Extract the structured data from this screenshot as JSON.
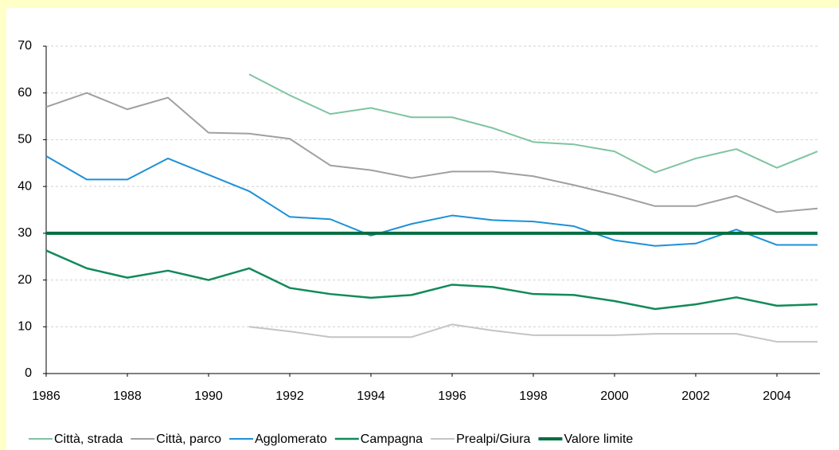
{
  "chart_data": {
    "type": "line",
    "x": [
      1986,
      1987,
      1988,
      1989,
      1990,
      1991,
      1992,
      1993,
      1994,
      1995,
      1996,
      1997,
      1998,
      1999,
      2000,
      2001,
      2002,
      2003,
      2004,
      2005
    ],
    "series": [
      {
        "name": "Città, strada",
        "color": "#7fc4a0",
        "width": 2,
        "values": [
          null,
          null,
          null,
          null,
          null,
          64,
          59.5,
          55.5,
          56.8,
          54.8,
          54.8,
          52.5,
          49.5,
          49,
          47.5,
          43,
          46,
          48,
          44,
          47.5
        ]
      },
      {
        "name": "Città, parco",
        "color": "#a0a0a0",
        "width": 2,
        "values": [
          57,
          60,
          56.5,
          59,
          51.5,
          51.3,
          50.2,
          44.5,
          43.5,
          41.8,
          43.2,
          43.2,
          42.2,
          40.3,
          38.2,
          35.8,
          35.8,
          38,
          34.5,
          35.3
        ]
      },
      {
        "name": "Agglomerato",
        "color": "#1e90d8",
        "width": 2,
        "values": [
          46.5,
          41.5,
          41.5,
          46,
          42.5,
          39,
          33.5,
          33,
          29.5,
          32,
          33.8,
          32.8,
          32.5,
          31.5,
          28.5,
          27.3,
          27.8,
          30.8,
          27.5,
          27.5
        ]
      },
      {
        "name": "Campagna",
        "color": "#128a5a",
        "width": 2.5,
        "values": [
          26.3,
          22.5,
          20.5,
          22,
          20,
          22.5,
          18.3,
          17,
          16.2,
          16.8,
          19,
          18.5,
          17,
          16.8,
          15.5,
          13.8,
          14.8,
          16.3,
          14.5,
          14.8
        ]
      },
      {
        "name": "Prealpi/Giura",
        "color": "#c4c4c4",
        "width": 2,
        "values": [
          null,
          null,
          null,
          null,
          null,
          10,
          9,
          7.8,
          7.8,
          7.8,
          10.5,
          9.2,
          8.2,
          8.2,
          8.2,
          8.5,
          8.5,
          8.5,
          6.8,
          6.8
        ]
      },
      {
        "name": "Valore limite",
        "color": "#006e40",
        "width": 4,
        "values": [
          30,
          30,
          30,
          30,
          30,
          30,
          30,
          30,
          30,
          30,
          30,
          30,
          30,
          30,
          30,
          30,
          30,
          30,
          30,
          30
        ]
      }
    ],
    "xlim": [
      1986,
      2005
    ],
    "xticks": [
      1986,
      1988,
      1990,
      1992,
      1994,
      1996,
      1998,
      2000,
      2002,
      2004
    ],
    "ylim": [
      0,
      70
    ],
    "yticks": [
      0,
      10,
      20,
      30,
      40,
      50,
      60,
      70
    ],
    "grid": true
  }
}
